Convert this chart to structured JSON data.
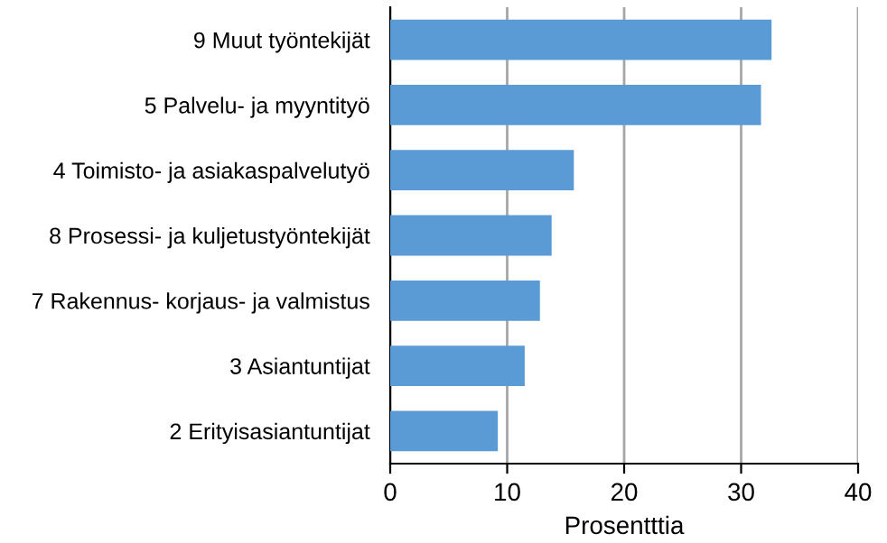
{
  "chart_data": {
    "type": "bar",
    "orientation": "horizontal",
    "xlabel": "Prosentttia",
    "categories": [
      "9 Muut työntekijät",
      "5 Palvelu- ja myyntityö",
      "4 Toimisto- ja asiakaspalvelutyö",
      "8 Prosessi- ja kuljetustyöntekijät",
      "7 Rakennus- korjaus- ja valmistus",
      "3 Asiantuntijat",
      "2 Erityisasiantuntijat"
    ],
    "values": [
      32.6,
      31.7,
      15.7,
      13.8,
      12.8,
      11.5,
      9.2
    ],
    "color": "#5b9bd5",
    "xlim": [
      0,
      40
    ],
    "xticks": [
      0,
      10,
      20,
      30,
      40
    ],
    "grid": "x"
  }
}
